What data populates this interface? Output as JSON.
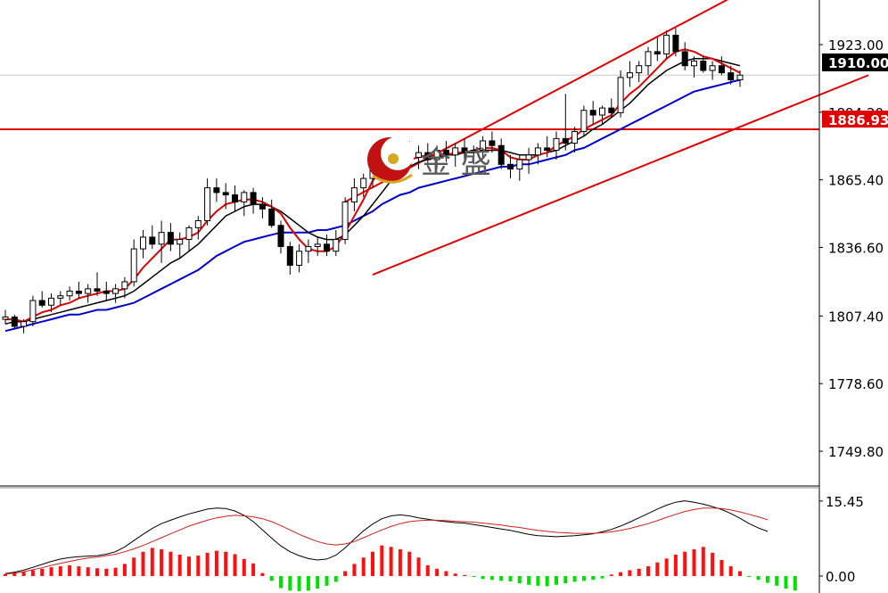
{
  "colors": {
    "bull": "#000000",
    "bear": "#000000",
    "ma_fast": "#e00000",
    "ma_mid": "#000000",
    "ma_slow": "#0000c8",
    "channel": "#e00000",
    "support_line": "#e00000",
    "hist_pos": "#ff1010",
    "hist_neg": "#00e000",
    "macd_line": "#000000",
    "signal_line": "#d02020",
    "current_tag_bg": "#000000",
    "level_tag_bg": "#e00000"
  },
  "logo": {
    "text": "金 盛"
  },
  "chart_data": [
    {
      "type": "candlestick",
      "ylim": [
        1735,
        1942
      ],
      "y_ticks": [
        "1923.00",
        "1894.20",
        "1865.40",
        "1836.60",
        "1807.40",
        "1778.60",
        "1749.80"
      ],
      "current_price": {
        "value": 1910.0,
        "label": "1910.00"
      },
      "horizontal_level": {
        "value": 1886.93,
        "label": "1886.93"
      },
      "candles": [
        [
          1806,
          1810,
          1804,
          1807
        ],
        [
          1807,
          1808,
          1802,
          1803
        ],
        [
          1803,
          1806,
          1800,
          1805
        ],
        [
          1805,
          1816,
          1803,
          1814
        ],
        [
          1814,
          1818,
          1811,
          1812
        ],
        [
          1812,
          1817,
          1809,
          1815
        ],
        [
          1815,
          1818,
          1812,
          1816
        ],
        [
          1816,
          1820,
          1814,
          1818
        ],
        [
          1818,
          1822,
          1815,
          1817
        ],
        [
          1817,
          1821,
          1813,
          1819
        ],
        [
          1819,
          1826,
          1816,
          1818
        ],
        [
          1818,
          1822,
          1814,
          1817
        ],
        [
          1817,
          1821,
          1813,
          1819
        ],
        [
          1819,
          1824,
          1815,
          1822
        ],
        [
          1822,
          1840,
          1820,
          1836
        ],
        [
          1836,
          1844,
          1832,
          1841
        ],
        [
          1841,
          1846,
          1836,
          1838
        ],
        [
          1838,
          1848,
          1830,
          1843
        ],
        [
          1843,
          1847,
          1835,
          1838
        ],
        [
          1838,
          1843,
          1832,
          1840
        ],
        [
          1840,
          1846,
          1835,
          1845
        ],
        [
          1845,
          1850,
          1840,
          1848
        ],
        [
          1848,
          1866,
          1846,
          1862
        ],
        [
          1862,
          1866,
          1856,
          1860
        ],
        [
          1860,
          1864,
          1853,
          1859
        ],
        [
          1859,
          1863,
          1852,
          1856
        ],
        [
          1856,
          1861,
          1850,
          1860
        ],
        [
          1860,
          1862,
          1851,
          1855
        ],
        [
          1855,
          1858,
          1849,
          1853
        ],
        [
          1853,
          1857,
          1845,
          1846
        ],
        [
          1846,
          1848,
          1834,
          1837
        ],
        [
          1837,
          1839,
          1825,
          1829
        ],
        [
          1829,
          1838,
          1826,
          1835
        ],
        [
          1835,
          1840,
          1830,
          1837
        ],
        [
          1837,
          1841,
          1833,
          1838
        ],
        [
          1838,
          1842,
          1833,
          1835
        ],
        [
          1835,
          1844,
          1833,
          1840
        ],
        [
          1840,
          1858,
          1838,
          1856
        ],
        [
          1856,
          1866,
          1852,
          1862
        ],
        [
          1862,
          1868,
          1858,
          1866
        ],
        [
          1866,
          1880,
          1862,
          1877
        ],
        [
          1877,
          1882,
          1868,
          1870
        ],
        [
          1870,
          1880,
          1866,
          1876
        ],
        [
          1876,
          1881,
          1870,
          1878
        ],
        [
          1878,
          1882,
          1872,
          1875
        ],
        [
          1875,
          1880,
          1870,
          1877
        ],
        [
          1877,
          1881,
          1871,
          1874
        ],
        [
          1874,
          1880,
          1870,
          1878
        ],
        [
          1878,
          1882,
          1873,
          1876
        ],
        [
          1876,
          1881,
          1871,
          1879
        ],
        [
          1879,
          1883,
          1874,
          1877
        ],
        [
          1877,
          1880,
          1872,
          1878
        ],
        [
          1878,
          1884,
          1875,
          1882
        ],
        [
          1882,
          1886,
          1877,
          1880
        ],
        [
          1880,
          1883,
          1870,
          1872
        ],
        [
          1872,
          1876,
          1866,
          1870
        ],
        [
          1870,
          1876,
          1865,
          1874
        ],
        [
          1874,
          1879,
          1868,
          1876
        ],
        [
          1876,
          1881,
          1872,
          1879
        ],
        [
          1879,
          1884,
          1875,
          1878
        ],
        [
          1878,
          1886,
          1874,
          1883
        ],
        [
          1883,
          1902,
          1878,
          1881
        ],
        [
          1881,
          1888,
          1877,
          1886
        ],
        [
          1886,
          1897,
          1884,
          1895
        ],
        [
          1895,
          1899,
          1889,
          1893
        ],
        [
          1893,
          1897,
          1889,
          1896
        ],
        [
          1896,
          1900,
          1892,
          1894
        ],
        [
          1894,
          1912,
          1892,
          1909
        ],
        [
          1909,
          1916,
          1905,
          1911
        ],
        [
          1911,
          1916,
          1907,
          1914
        ],
        [
          1914,
          1922,
          1910,
          1920
        ],
        [
          1920,
          1926,
          1916,
          1919
        ],
        [
          1919,
          1929,
          1917,
          1927
        ],
        [
          1927,
          1930,
          1918,
          1920
        ],
        [
          1920,
          1924,
          1912,
          1914
        ],
        [
          1914,
          1918,
          1909,
          1916
        ],
        [
          1916,
          1918,
          1911,
          1912
        ],
        [
          1912,
          1916,
          1908,
          1914
        ],
        [
          1914,
          1918,
          1910,
          1911
        ],
        [
          1911,
          1914,
          1906,
          1908
        ],
        [
          1908,
          1912,
          1905,
          1910
        ]
      ],
      "ma_fast": [
        1806,
        1806,
        1805,
        1807,
        1809,
        1810,
        1812,
        1813,
        1815,
        1816,
        1817,
        1818,
        1818,
        1819,
        1823,
        1828,
        1832,
        1836,
        1840,
        1840,
        1841,
        1843,
        1848,
        1852,
        1855,
        1856,
        1857,
        1857,
        1856,
        1854,
        1851,
        1845,
        1840,
        1836,
        1835,
        1835,
        1837,
        1843,
        1850,
        1857,
        1865,
        1870,
        1873,
        1873,
        1874,
        1875,
        1876,
        1876,
        1876,
        1877,
        1877,
        1878,
        1879,
        1879,
        1878,
        1875,
        1874,
        1874,
        1876,
        1877,
        1880,
        1882,
        1884,
        1887,
        1889,
        1891,
        1893,
        1898,
        1902,
        1905,
        1909,
        1913,
        1917,
        1920,
        1921,
        1920,
        1918,
        1917,
        1915,
        1913,
        1911
      ],
      "ma_mid": [
        1804,
        1805,
        1805,
        1806,
        1807,
        1808,
        1809,
        1810,
        1811,
        1812,
        1813,
        1814,
        1815,
        1816,
        1818,
        1821,
        1824,
        1827,
        1830,
        1832,
        1835,
        1838,
        1842,
        1846,
        1850,
        1852,
        1854,
        1855,
        1855,
        1854,
        1852,
        1849,
        1846,
        1843,
        1841,
        1840,
        1840,
        1842,
        1846,
        1850,
        1855,
        1860,
        1865,
        1868,
        1871,
        1873,
        1874,
        1875,
        1876,
        1876,
        1877,
        1877,
        1878,
        1878,
        1878,
        1877,
        1876,
        1876,
        1876,
        1877,
        1878,
        1880,
        1882,
        1884,
        1887,
        1889,
        1892,
        1895,
        1898,
        1902,
        1906,
        1909,
        1912,
        1914,
        1916,
        1917,
        1917,
        1917,
        1916,
        1915,
        1914
      ],
      "ma_slow": [
        1801,
        1802,
        1803,
        1804,
        1805,
        1806,
        1807,
        1808,
        1808,
        1809,
        1810,
        1810,
        1811,
        1812,
        1813,
        1815,
        1817,
        1819,
        1821,
        1823,
        1825,
        1827,
        1830,
        1833,
        1835,
        1837,
        1839,
        1840,
        1841,
        1842,
        1843,
        1843,
        1843,
        1843,
        1844,
        1844,
        1845,
        1846,
        1848,
        1850,
        1852,
        1855,
        1857,
        1859,
        1860,
        1862,
        1863,
        1864,
        1865,
        1866,
        1867,
        1868,
        1869,
        1870,
        1871,
        1871,
        1872,
        1872,
        1873,
        1874,
        1875,
        1876,
        1878,
        1879,
        1881,
        1883,
        1885,
        1887,
        1889,
        1891,
        1893,
        1895,
        1897,
        1899,
        1901,
        1903,
        1904,
        1905,
        1906,
        1907,
        1908
      ],
      "channel_upper": [
        [
          37,
          1856
        ],
        [
          80,
          1945
        ]
      ],
      "channel_lower": [
        [
          40,
          1825
        ],
        [
          94,
          1910
        ]
      ]
    },
    {
      "type": "macd",
      "ylim": [
        -3.5,
        18
      ],
      "y_ticks": [
        "15.45",
        "0.00"
      ],
      "histogram": [
        0.4,
        0.8,
        0.9,
        1.2,
        1.5,
        1.8,
        2.0,
        2.2,
        2.0,
        1.8,
        1.6,
        1.5,
        1.7,
        2.5,
        3.8,
        5.0,
        5.8,
        5.5,
        5.0,
        4.4,
        4.0,
        4.2,
        4.8,
        5.2,
        5.0,
        4.5,
        3.5,
        2.6,
        0.6,
        -1.0,
        -2.5,
        -3.0,
        -3.1,
        -3.0,
        -2.6,
        -2.0,
        -1.2,
        1.0,
        2.5,
        3.8,
        5.0,
        6.3,
        6.0,
        5.5,
        5.0,
        3.8,
        2.2,
        1.5,
        1.0,
        0.5,
        0.2,
        -0.2,
        -0.6,
        -0.8,
        -1.0,
        -1.1,
        -1.5,
        -1.8,
        -2.0,
        -2.1,
        -1.8,
        -1.5,
        -1.2,
        -1.0,
        -0.8,
        -0.5,
        0.3,
        0.8,
        1.2,
        1.5,
        2.0,
        2.8,
        3.6,
        4.4,
        5.0,
        5.5,
        6.0,
        4.8,
        3.3,
        2.0,
        1.0,
        -0.2,
        -0.8,
        -1.4,
        -2.0,
        -2.6,
        -3.0
      ],
      "macd_line": [
        0.5,
        0.8,
        1.2,
        1.8,
        2.4,
        3.0,
        3.5,
        3.8,
        4.0,
        4.1,
        4.2,
        4.5,
        5.0,
        6.0,
        7.3,
        8.6,
        9.8,
        10.8,
        11.5,
        12.2,
        12.8,
        13.3,
        13.8,
        14.0,
        13.9,
        13.4,
        12.5,
        11.2,
        9.5,
        7.8,
        6.2,
        5.0,
        4.2,
        3.6,
        3.3,
        3.5,
        4.3,
        5.8,
        7.6,
        9.3,
        10.7,
        11.8,
        12.4,
        12.6,
        12.4,
        12.0,
        11.7,
        11.4,
        11.2,
        11.0,
        10.9,
        10.6,
        10.3,
        10.0,
        9.7,
        9.4,
        9.0,
        8.6,
        8.3,
        8.2,
        8.1,
        8.2,
        8.3,
        8.5,
        8.7,
        9.1,
        9.6,
        10.3,
        11.1,
        12.0,
        12.9,
        13.8,
        14.6,
        15.2,
        15.5,
        15.2,
        14.8,
        14.3,
        13.7,
        12.9,
        11.9,
        10.8,
        9.9,
        9.2
      ],
      "signal_line": [
        0.4,
        0.6,
        0.9,
        1.3,
        1.7,
        2.2,
        2.6,
        3.0,
        3.4,
        3.7,
        3.9,
        4.2,
        4.5,
        5.0,
        5.6,
        6.3,
        7.1,
        7.9,
        8.7,
        9.5,
        10.3,
        10.9,
        11.5,
        12.0,
        12.3,
        12.5,
        12.4,
        12.2,
        11.8,
        11.2,
        10.4,
        9.5,
        8.6,
        7.8,
        7.1,
        6.6,
        6.4,
        6.6,
        7.1,
        7.9,
        8.7,
        9.5,
        10.2,
        10.8,
        11.2,
        11.4,
        11.5,
        11.5,
        11.4,
        11.3,
        11.2,
        11.1,
        10.9,
        10.7,
        10.5,
        10.2,
        10.0,
        9.7,
        9.4,
        9.2,
        9.0,
        8.9,
        8.8,
        8.8,
        8.8,
        8.9,
        9.1,
        9.4,
        9.8,
        10.3,
        10.8,
        11.4,
        12.1,
        12.7,
        13.3,
        13.7,
        14.0,
        14.0,
        13.9,
        13.6,
        13.2,
        12.7,
        12.2,
        11.6
      ]
    }
  ]
}
